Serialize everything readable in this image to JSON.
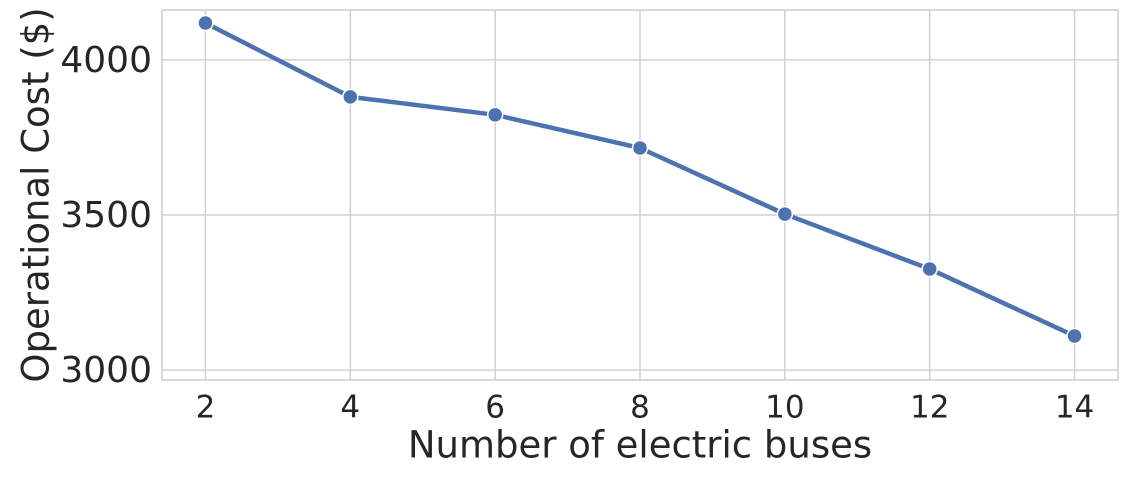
{
  "chart_data": {
    "type": "line",
    "x_label": "Number of electric buses",
    "y_label": "Operational Cost ($)",
    "x": [
      2,
      4,
      6,
      8,
      10,
      12,
      14
    ],
    "series": [
      {
        "color": "#4c72b0",
        "values": [
          4119,
          3881,
          3823,
          3716,
          3503,
          3326,
          3110
        ]
      }
    ],
    "xlim": [
      1.4,
      14.6
    ],
    "xticks": [
      2,
      4,
      6,
      8,
      10,
      12,
      14
    ],
    "ylim": [
      2968,
      4161
    ],
    "yticks": [
      3000,
      3500,
      4000
    ],
    "grid": true
  }
}
